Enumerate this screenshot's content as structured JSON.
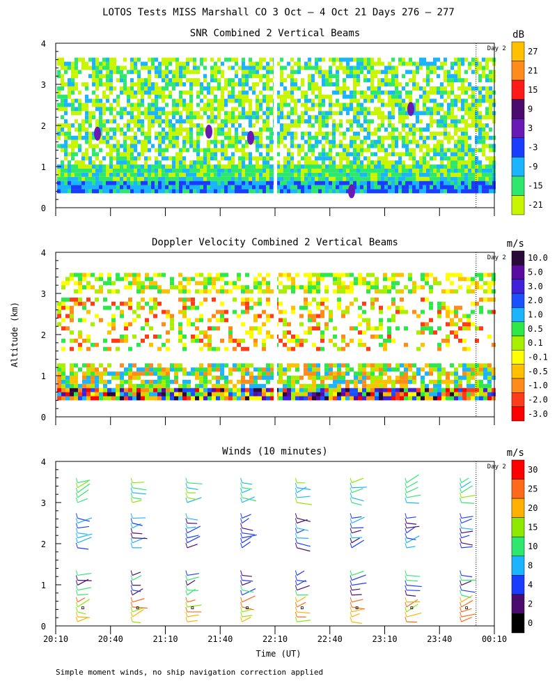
{
  "figure": {
    "title": "LOTOS Tests MISS Marshall CO   3 Oct —  4 Oct 21 Days 276 — 277",
    "xlabel": "Time (UT)",
    "ylabel": "Altitude (km)",
    "footnote": "Simple moment winds, no ship navigation correction applied",
    "day_marker": "Day 2"
  },
  "chart_data": [
    {
      "type": "heatmap",
      "title": "SNR Combined 2 Vertical Beams",
      "colorbar_unit": "dB",
      "x_ticks": [
        "20:10",
        "20:40",
        "21:10",
        "21:40",
        "22:10",
        "22:40",
        "23:10",
        "23:40",
        "00:10"
      ],
      "y_ticks": [
        0,
        1,
        2,
        3,
        4
      ],
      "ylim": [
        0,
        4
      ],
      "colorbar_levels": [
        27,
        21,
        15,
        9,
        3,
        -3,
        -9,
        -15,
        -21
      ],
      "colorbar_colors": [
        "#ffc000",
        "#ff8c1a",
        "#ff1a1a",
        "#4a0a6e",
        "#6a1ab4",
        "#1a3cff",
        "#1ab4ff",
        "#2ee86e",
        "#c8f500"
      ],
      "gap_time": "22:10",
      "day_boundary": "00:00"
    },
    {
      "type": "heatmap",
      "title": "Doppler Velocity Combined 2 Vertical Beams",
      "colorbar_unit": "m/s",
      "x_ticks": [
        "20:10",
        "20:40",
        "21:10",
        "21:40",
        "22:10",
        "22:40",
        "23:10",
        "23:40",
        "00:10"
      ],
      "y_ticks": [
        0,
        1,
        2,
        3,
        4
      ],
      "ylim": [
        0,
        4
      ],
      "colorbar_levels": [
        "10.0",
        "5.0",
        "3.0",
        "2.0",
        "1.0",
        "0.5",
        "0.1",
        "-0.1",
        "-0.5",
        "-1.0",
        "-2.0",
        "-3.0"
      ],
      "colorbar_colors": [
        "#2a0a38",
        "#5a0aa0",
        "#4020d8",
        "#1a50ff",
        "#1ab4ff",
        "#2ee84a",
        "#a8f000",
        "#ffff00",
        "#ffc000",
        "#ff8c1a",
        "#ff3c1a",
        "#ff0000"
      ],
      "gap_time": "22:10",
      "day_boundary": "00:00"
    },
    {
      "type": "scatter",
      "title": "Winds (10 minutes)",
      "colorbar_unit": "m/s",
      "x_ticks": [
        "20:10",
        "20:40",
        "21:10",
        "21:40",
        "22:10",
        "22:40",
        "23:10",
        "23:40",
        "00:10"
      ],
      "y_ticks": [
        0,
        1,
        2,
        3,
        4
      ],
      "ylim": [
        0,
        4
      ],
      "colorbar_levels": [
        30,
        25,
        20,
        15,
        10,
        8,
        4,
        2,
        0
      ],
      "colorbar_colors": [
        "#ff0000",
        "#ff6a1a",
        "#ffb000",
        "#8ee800",
        "#2ee86e",
        "#1ab4ff",
        "#1a3cff",
        "#4a0a6e",
        "#000000"
      ],
      "profile_times": [
        "20:25",
        "20:55",
        "21:25",
        "21:55",
        "22:25",
        "22:55",
        "23:25",
        "23:55"
      ],
      "day_boundary": "00:00"
    }
  ]
}
